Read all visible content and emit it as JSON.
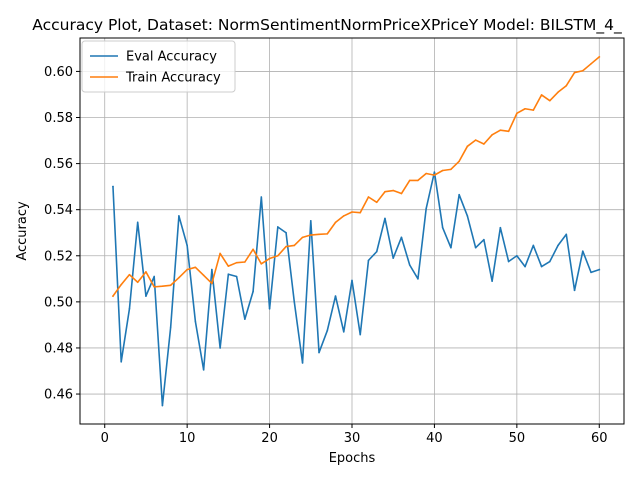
{
  "chart_data": {
    "type": "line",
    "title": "Accuracy Plot, Dataset: NormSentimentNormPriceXPriceY Model: BILSTM_4_",
    "xlabel": "Epochs",
    "ylabel": "Accuracy",
    "xlim": [
      -3,
      63
    ],
    "ylim": [
      0.447,
      0.6145
    ],
    "xticks": [
      0,
      10,
      20,
      30,
      40,
      50,
      60
    ],
    "yticks": [
      0.46,
      0.48,
      0.5,
      0.52,
      0.54,
      0.56,
      0.58,
      0.6
    ],
    "ytick_labels": [
      "0.46",
      "0.48",
      "0.50",
      "0.52",
      "0.54",
      "0.56",
      "0.58",
      "0.60"
    ],
    "grid": true,
    "legend_position": "top-left",
    "x": [
      1,
      2,
      3,
      4,
      5,
      6,
      7,
      8,
      9,
      10,
      11,
      12,
      13,
      14,
      15,
      16,
      17,
      18,
      19,
      20,
      21,
      22,
      23,
      24,
      25,
      26,
      27,
      28,
      29,
      30,
      31,
      32,
      33,
      34,
      35,
      36,
      37,
      38,
      39,
      40,
      41,
      42,
      43,
      44,
      45,
      46,
      47,
      48,
      49,
      50,
      51,
      52,
      53,
      54,
      55,
      56,
      57,
      58,
      59,
      60
    ],
    "series": [
      {
        "name": "Eval Accuracy",
        "color": "#1f77b4",
        "values": [
          0.55,
          0.474,
          0.497,
          0.5345,
          0.5025,
          0.511,
          0.455,
          0.489,
          0.5373,
          0.5245,
          0.4915,
          0.4705,
          0.514,
          0.48,
          0.512,
          0.511,
          0.4925,
          0.5045,
          0.5455,
          0.497,
          0.5325,
          0.53,
          0.5,
          0.4735,
          0.5352,
          0.478,
          0.4875,
          0.5025,
          0.487,
          0.5093,
          0.4858,
          0.518,
          0.5218,
          0.5362,
          0.519,
          0.528,
          0.516,
          0.51,
          0.5405,
          0.5563,
          0.5322,
          0.5235,
          0.5465,
          0.5373,
          0.5235,
          0.527,
          0.509,
          0.5322,
          0.5175,
          0.52,
          0.5153,
          0.5245,
          0.5153,
          0.5175,
          0.5245,
          0.5293,
          0.505,
          0.522,
          0.5128,
          0.514
        ]
      },
      {
        "name": "Train Accuracy",
        "color": "#ff7f0e",
        "values": [
          0.5025,
          0.5075,
          0.5118,
          0.5085,
          0.513,
          0.5065,
          0.5068,
          0.5072,
          0.5105,
          0.514,
          0.515,
          0.5115,
          0.508,
          0.521,
          0.5155,
          0.517,
          0.5173,
          0.5228,
          0.5165,
          0.5188,
          0.52,
          0.524,
          0.5245,
          0.528,
          0.529,
          0.5293,
          0.5295,
          0.5345,
          0.5373,
          0.539,
          0.5387,
          0.5455,
          0.5432,
          0.5478,
          0.5483,
          0.547,
          0.5527,
          0.5527,
          0.5557,
          0.555,
          0.557,
          0.5575,
          0.561,
          0.5675,
          0.5702,
          0.5685,
          0.5725,
          0.5745,
          0.574,
          0.5818,
          0.5838,
          0.5832,
          0.5898,
          0.5873,
          0.591,
          0.5938,
          0.5995,
          0.6003,
          0.6033,
          0.6063
        ]
      }
    ]
  }
}
